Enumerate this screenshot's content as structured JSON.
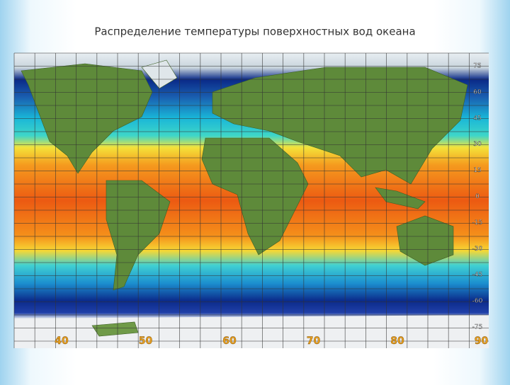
{
  "title": "Распределение температуры поверхностных вод океана",
  "map": {
    "latitude_labels": [
      "75",
      "60",
      "45",
      "30",
      "15",
      "0",
      "-15",
      "-30",
      "-45",
      "-60",
      "-75"
    ],
    "longitude_labels": [
      "40",
      "50",
      "60",
      "70",
      "80",
      "90"
    ]
  }
}
